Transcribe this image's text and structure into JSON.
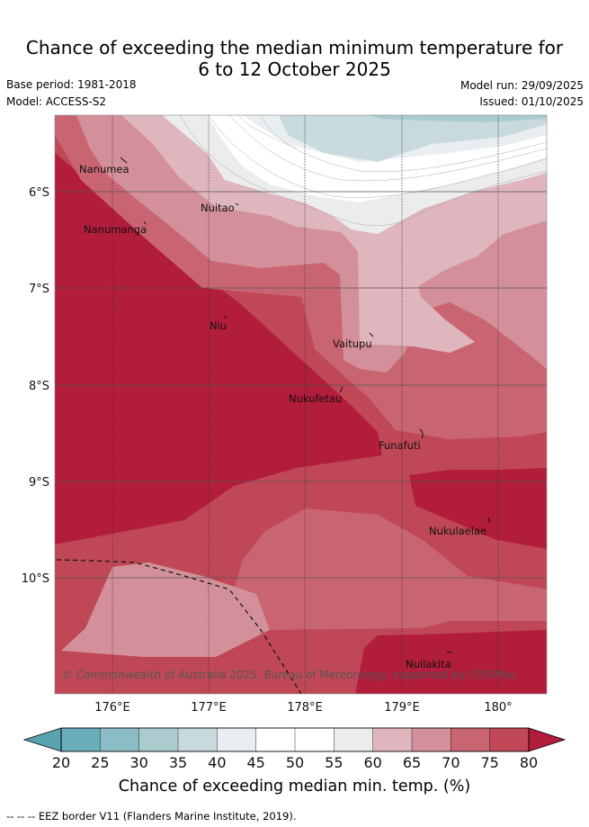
{
  "header": {
    "title_line1": "Chance of exceeding the median minimum temperature for",
    "title_line2": "6 to 12 October 2025",
    "base_period": "Base period: 1981-2018",
    "model": "Model: ACCESS-S2",
    "model_run": "Model run: 29/09/2025",
    "issued": "Issued: 01/10/2025"
  },
  "map": {
    "lon_ticks": [
      "176°E",
      "177°E",
      "178°E",
      "179°E",
      "180°"
    ],
    "lat_ticks": [
      "6°S",
      "7°S",
      "8°S",
      "9°S",
      "10°S"
    ],
    "places": [
      "Nanumea",
      "Nuitao",
      "Nanumanga",
      "Niu",
      "Vaitupu",
      "Nukufetau",
      "Funafuti",
      "Nukulaelae",
      "Nuilakita"
    ],
    "copyright": "© Commonwealth of Australia 2025, Bureau of Meteorology, supported by COSPPac"
  },
  "colorbar": {
    "ticks": [
      "20",
      "25",
      "30",
      "35",
      "40",
      "45",
      "50",
      "55",
      "60",
      "65",
      "70",
      "75",
      "80"
    ],
    "title": "Chance of exceeding median min. temp. (%)",
    "colors": [
      "#6aadbb",
      "#8cbcc6",
      "#abcbcf",
      "#c9dade",
      "#e9eff1",
      "#ffffff",
      "#ffffff",
      "#ececec",
      "#dfb6bd",
      "#d4909a",
      "#c96572",
      "#c04856"
    ],
    "under_color": "#5aa3b1",
    "over_color": "#b21d3b"
  },
  "legend": {
    "eez_text": "-- -- -- EEZ border V11 (Flanders Marine Institute, 2019)."
  }
}
